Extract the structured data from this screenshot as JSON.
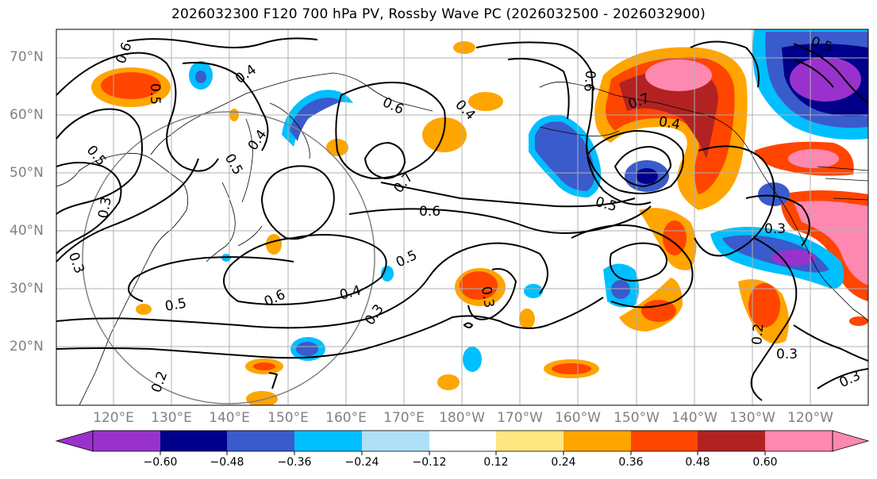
{
  "title": "2026032300 F120 700 hPa PV, Rossby Wave PC (2026032500 - 2026032900)",
  "lat_labels": [
    "70°N",
    "60°N",
    "50°N",
    "40°N",
    "30°N",
    "20°N"
  ],
  "lon_labels": [
    "120°E",
    "130°E",
    "140°E",
    "150°E",
    "160°E",
    "170°E",
    "180°W",
    "170°W",
    "160°W",
    "150°W",
    "140°W",
    "130°W",
    "120°W"
  ],
  "colorbar": {
    "ticks": [
      "−0.60",
      "−0.48",
      "−0.36",
      "−0.24",
      "−0.12",
      "0.12",
      "0.24",
      "0.36",
      "0.48",
      "0.60"
    ],
    "colors": [
      "#9932CC",
      "#00008B",
      "#3A5BCC",
      "#00BFFF",
      "#B0E0F8",
      "#FFFFFF",
      "#FFE680",
      "#FFA500",
      "#FF4500",
      "#B22222",
      "#FF88B0"
    ]
  },
  "contour_labels": [
    "0.6",
    "0.5",
    "0.4",
    "0.6",
    "0.4",
    "0.7",
    "0.5",
    "0.3",
    "0.3",
    "0.5",
    "0.6",
    "0.5",
    "0.6",
    "0.4",
    "0.3",
    "0.3",
    "0.6",
    "0.7",
    "0.4",
    "0.5",
    "0.3",
    "0.2",
    "0.3",
    "0.3",
    "0.2",
    "0.5",
    "0.5",
    "0.4"
  ]
}
